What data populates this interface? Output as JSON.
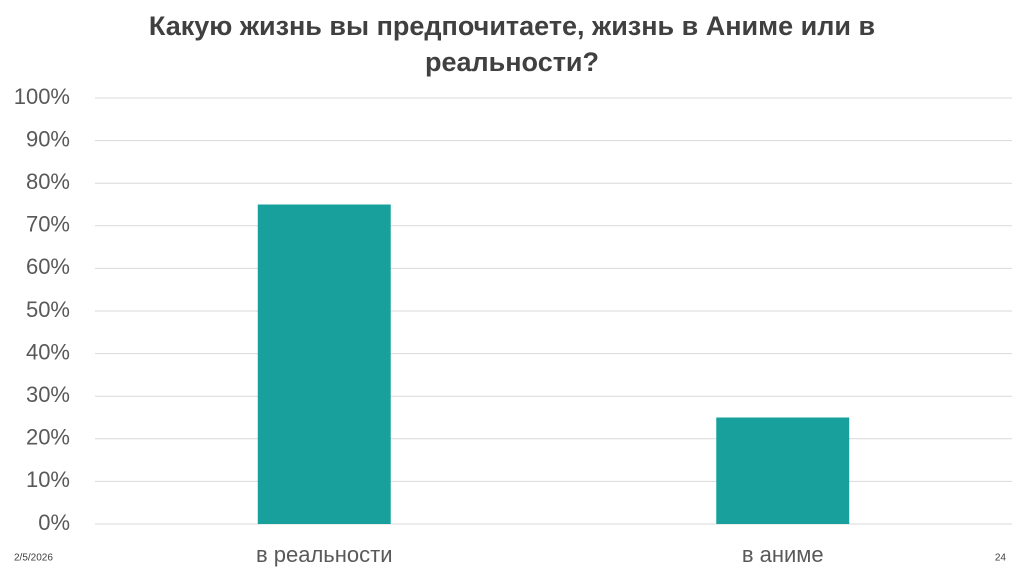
{
  "chart_data": {
    "type": "bar",
    "title": "Какую жизнь вы предпочитаете, жизнь в Аниме или в реальности?",
    "categories": [
      "в реальности",
      "в аниме"
    ],
    "values": [
      75,
      25
    ],
    "color": "#17a09c",
    "ylim": [
      0,
      100
    ],
    "yticks": [
      {
        "value": 0,
        "label": "0%"
      },
      {
        "value": 10,
        "label": "10%"
      },
      {
        "value": 20,
        "label": "20%"
      },
      {
        "value": 30,
        "label": "30%"
      },
      {
        "value": 40,
        "label": "40%"
      },
      {
        "value": 50,
        "label": "50%"
      },
      {
        "value": 60,
        "label": "60%"
      },
      {
        "value": 70,
        "label": "70%"
      },
      {
        "value": 80,
        "label": "80%"
      },
      {
        "value": 90,
        "label": "90%"
      },
      {
        "value": 100,
        "label": "100%"
      }
    ],
    "grid": true
  },
  "footer": {
    "date": "2/5/2026",
    "page": "24"
  }
}
